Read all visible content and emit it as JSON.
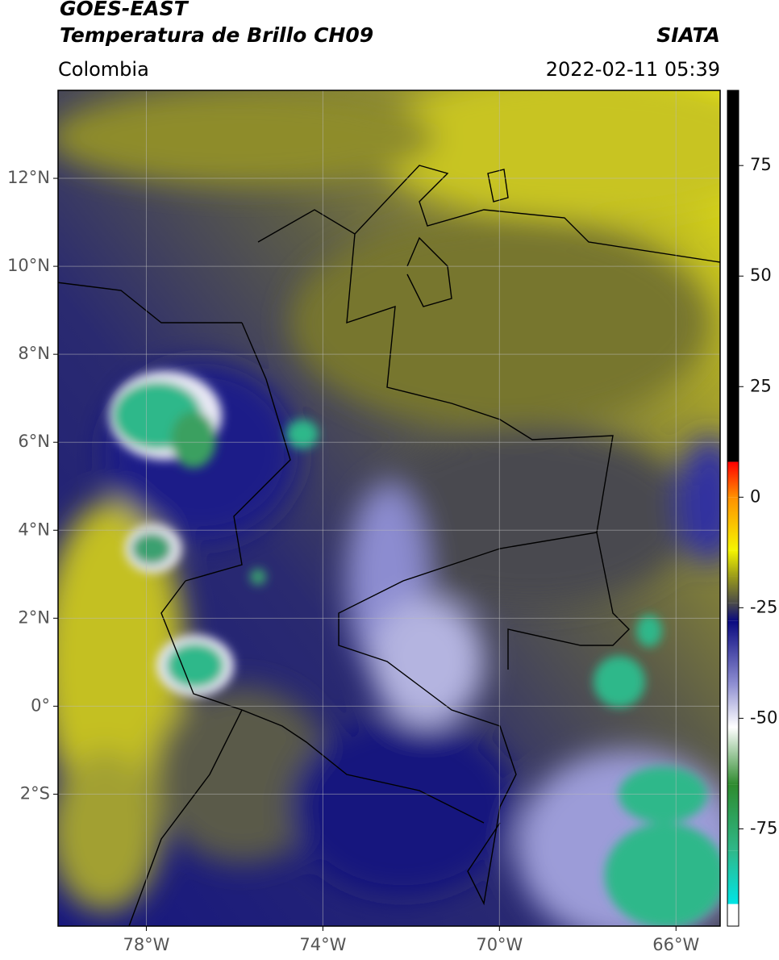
{
  "header": {
    "title": "GOES-EAST",
    "subtitle": "Temperatura de Brillo CH09",
    "region": "Colombia",
    "source": "SIATA",
    "datetime": "2022-02-11 05:39"
  },
  "map": {
    "xlim": [
      -80,
      -65
    ],
    "ylim": [
      -5,
      14
    ],
    "xticks": [
      {
        "value": -78,
        "label": "78°W"
      },
      {
        "value": -74,
        "label": "74°W"
      },
      {
        "value": -70,
        "label": "70°W"
      },
      {
        "value": -66,
        "label": "66°W"
      }
    ],
    "yticks": [
      {
        "value": 12,
        "label": "12°N"
      },
      {
        "value": 10,
        "label": "10°N"
      },
      {
        "value": 8,
        "label": "8°N"
      },
      {
        "value": 6,
        "label": "6°N"
      },
      {
        "value": 4,
        "label": "4°N"
      },
      {
        "value": 2,
        "label": "2°N"
      },
      {
        "value": 0,
        "label": "0°"
      },
      {
        "value": -2,
        "label": "2°S"
      }
    ],
    "grid": true
  },
  "colorbar": {
    "lim": [
      -97,
      92
    ],
    "ticks": [
      75,
      50,
      25,
      0,
      -25,
      -50,
      -75
    ],
    "stops": [
      {
        "value": -97,
        "color": "#ffffff"
      },
      {
        "value": -92,
        "color": "#ffffff"
      },
      {
        "value": -92,
        "color": "#00e5e5"
      },
      {
        "value": -80,
        "color": "#2fb88a"
      },
      {
        "value": -65,
        "color": "#2e8b2e"
      },
      {
        "value": -52,
        "color": "#ffffff"
      },
      {
        "value": -42,
        "color": "#8c8cd0"
      },
      {
        "value": -28,
        "color": "#0a0a80"
      },
      {
        "value": -24,
        "color": "#4a4a4a"
      },
      {
        "value": -18,
        "color": "#9a9a1a"
      },
      {
        "value": -12,
        "color": "#f5f500"
      },
      {
        "value": 0,
        "color": "#ff9000"
      },
      {
        "value": 8,
        "color": "#ff0000"
      },
      {
        "value": 8,
        "color": "#000000"
      },
      {
        "value": 92,
        "color": "#000000"
      }
    ]
  }
}
